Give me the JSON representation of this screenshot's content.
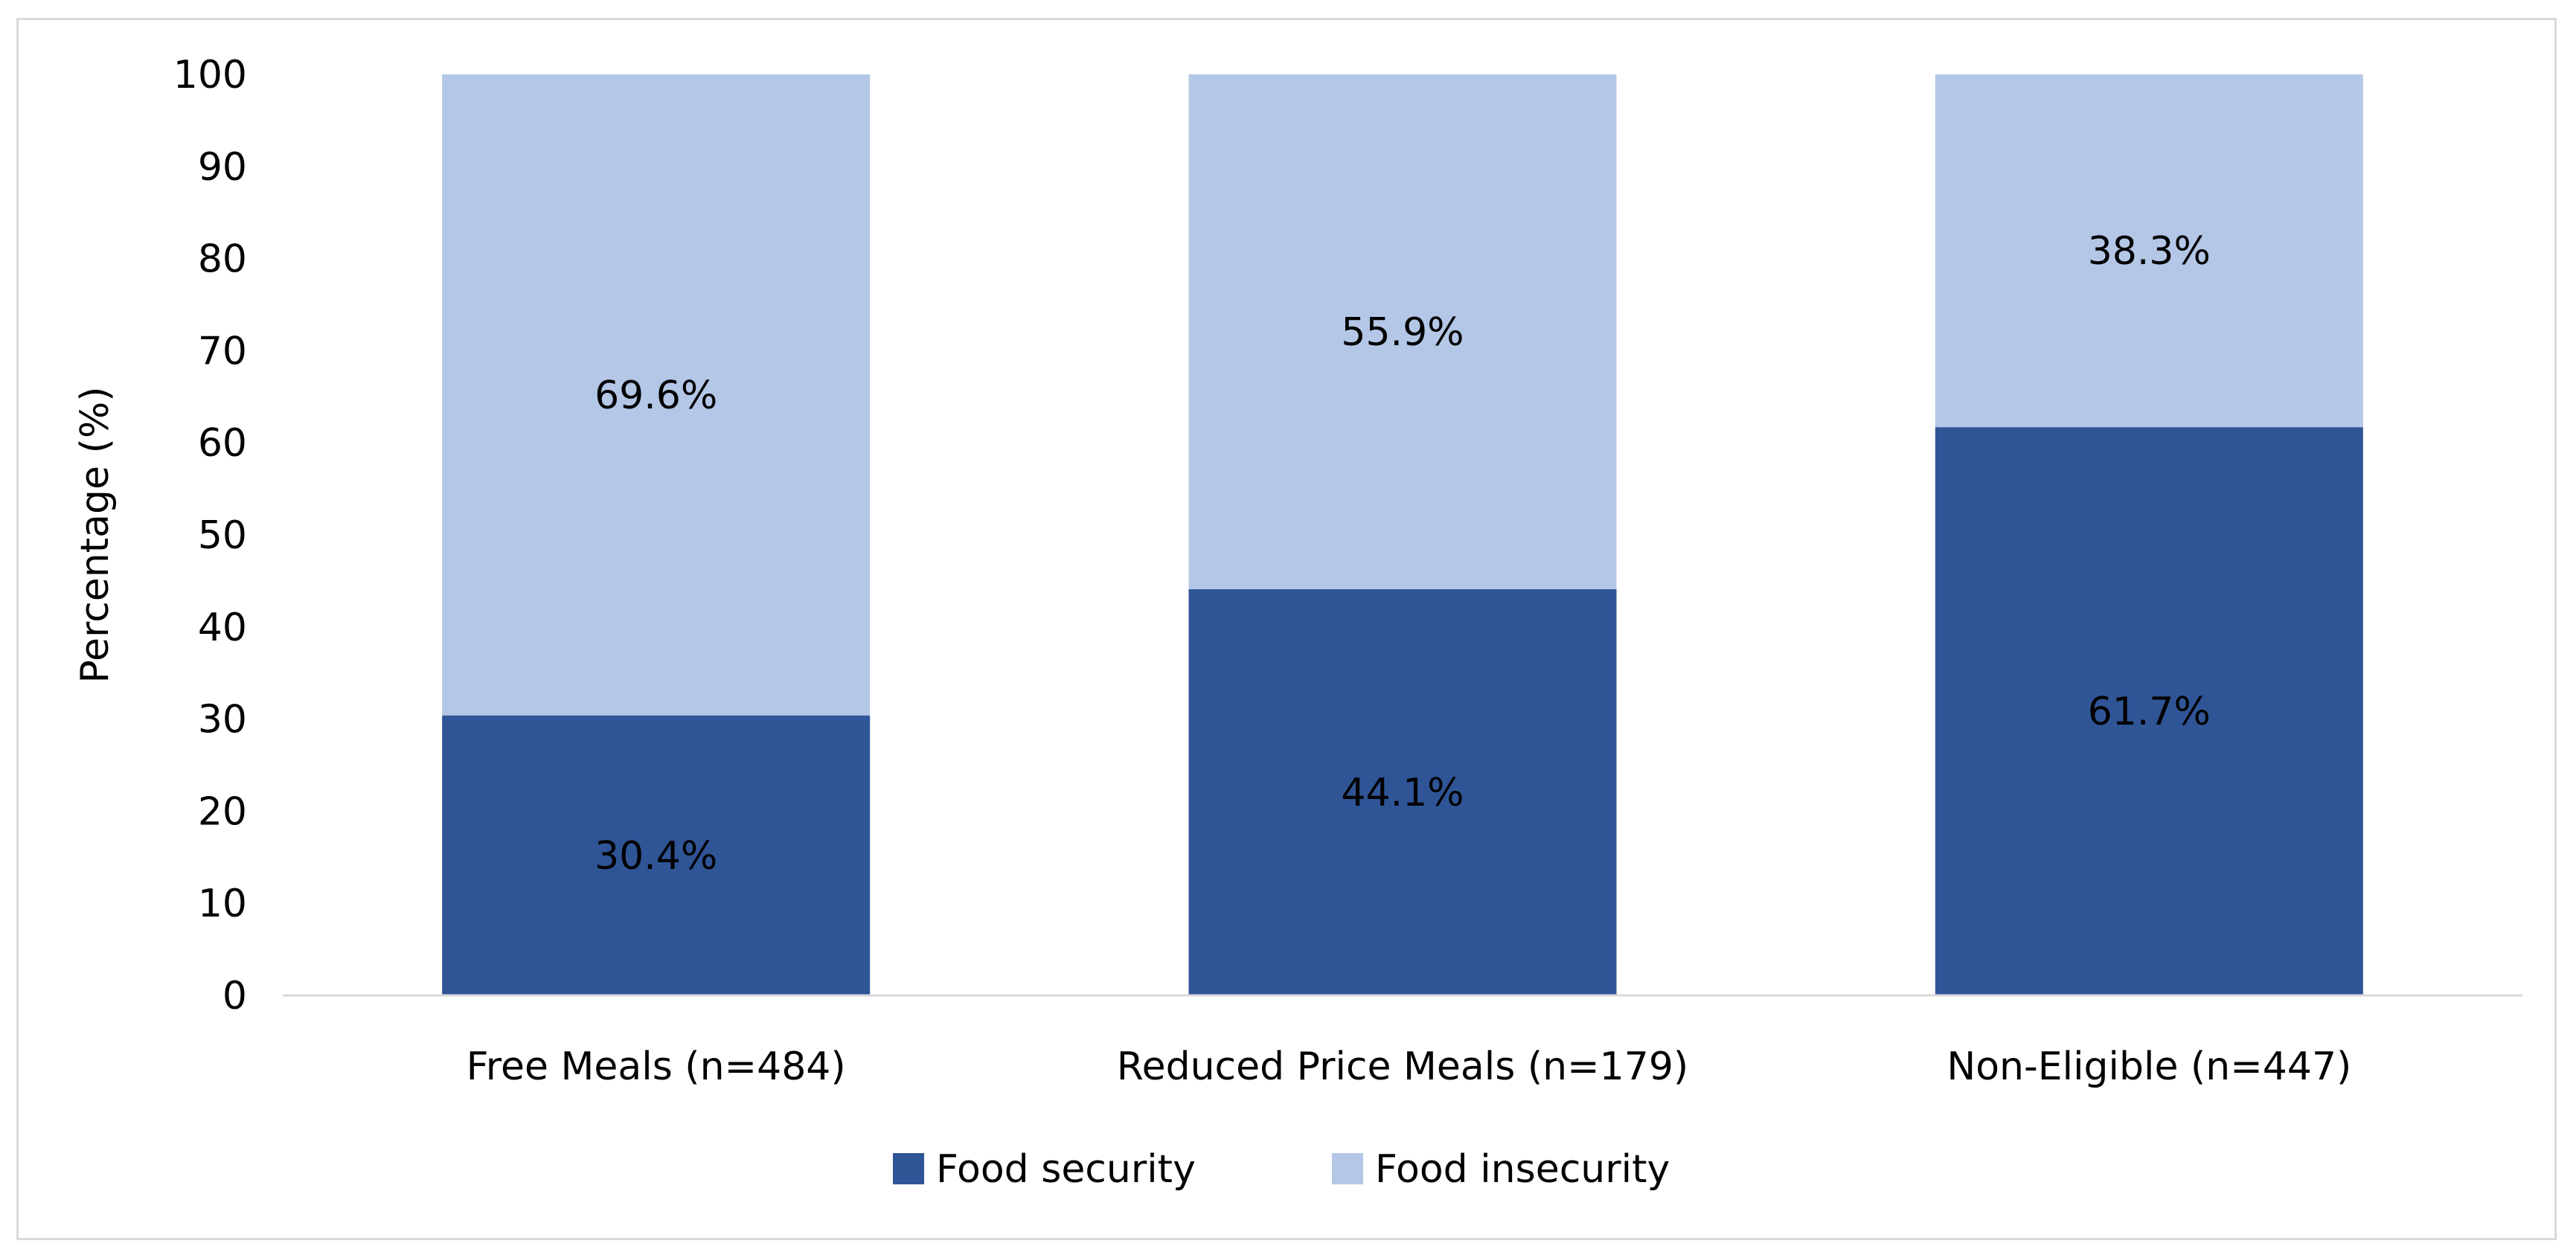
{
  "chart_data": {
    "type": "bar",
    "stacked": true,
    "categories": [
      "Free Meals (n=484)",
      "Reduced Price Meals (n=179)",
      "Non-Eligible (n=447)"
    ],
    "series": [
      {
        "name": "Food security",
        "values": [
          30.4,
          44.1,
          61.7
        ],
        "labels": [
          "30.4%",
          "44.1%",
          "61.7%"
        ],
        "color": "#2f5597"
      },
      {
        "name": "Food insecurity",
        "values": [
          69.6,
          55.9,
          38.3
        ],
        "labels": [
          "69.6%",
          "55.9%",
          "38.3%"
        ],
        "color": "#b4c7e7"
      }
    ],
    "title": "",
    "xlabel": "",
    "ylabel": "Percentage (%)",
    "ylim": [
      0,
      100
    ],
    "yticks": [
      0,
      10,
      20,
      30,
      40,
      50,
      60,
      70,
      80,
      90,
      100
    ],
    "grid": false,
    "legend": "bottom",
    "axis_color": "#d9d9d9"
  }
}
